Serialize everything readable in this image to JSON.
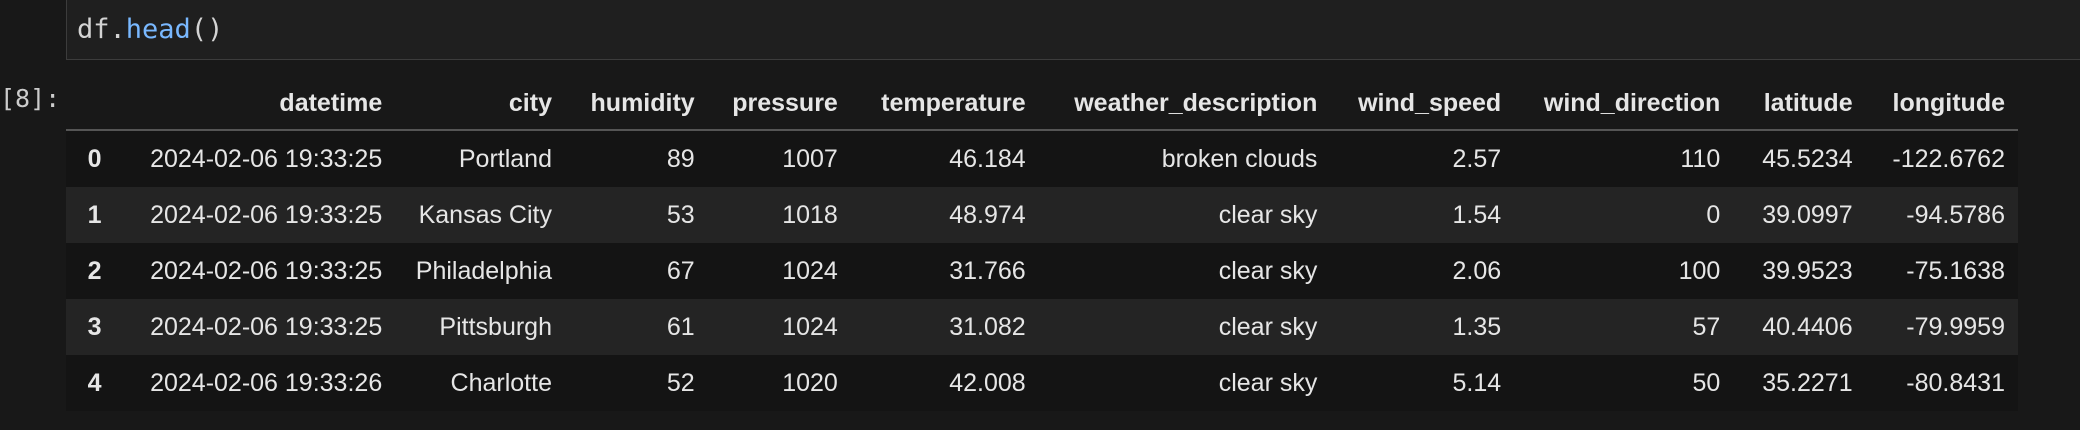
{
  "cell": {
    "code_object": "df",
    "code_dot": ".",
    "code_method": "head",
    "code_parens": "()",
    "execution_count": "[8]:"
  },
  "table": {
    "columns": [
      "datetime",
      "city",
      "humidity",
      "pressure",
      "temperature",
      "weather_description",
      "wind_speed",
      "wind_direction",
      "latitude",
      "longitude"
    ],
    "rows": [
      {
        "index": "0",
        "cells": [
          "2024-02-06 19:33:25",
          "Portland",
          "89",
          "1007",
          "46.184",
          "broken clouds",
          "2.57",
          "110",
          "45.5234",
          "-122.6762"
        ]
      },
      {
        "index": "1",
        "cells": [
          "2024-02-06 19:33:25",
          "Kansas City",
          "53",
          "1018",
          "48.974",
          "clear sky",
          "1.54",
          "0",
          "39.0997",
          "-94.5786"
        ]
      },
      {
        "index": "2",
        "cells": [
          "2024-02-06 19:33:25",
          "Philadelphia",
          "67",
          "1024",
          "31.766",
          "clear sky",
          "2.06",
          "100",
          "39.9523",
          "-75.1638"
        ]
      },
      {
        "index": "3",
        "cells": [
          "2024-02-06 19:33:25",
          "Pittsburgh",
          "61",
          "1024",
          "31.082",
          "clear sky",
          "1.35",
          "57",
          "40.4406",
          "-79.9959"
        ]
      },
      {
        "index": "4",
        "cells": [
          "2024-02-06 19:33:26",
          "Charlotte",
          "52",
          "1020",
          "42.008",
          "clear sky",
          "5.14",
          "50",
          "35.2271",
          "-80.8431"
        ]
      }
    ]
  },
  "colors": {
    "background": "#181818",
    "code_method": "#79b8ff",
    "row_odd": "#141414",
    "row_even": "#242424"
  }
}
